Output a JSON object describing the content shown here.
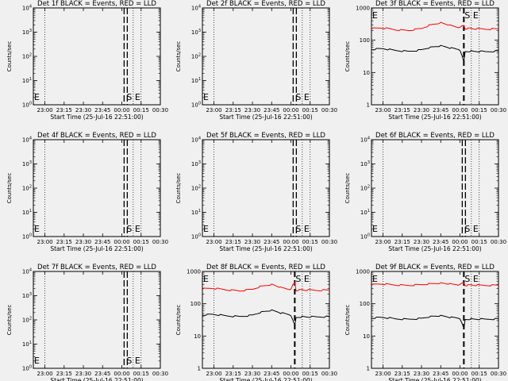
{
  "chart_data": [
    {
      "type": "line",
      "title": "Det 1f BLACK = Events, RED = LLD",
      "xlabel": "Start Time (25-Jul-16 22:51:00)",
      "ylabel": "Counts/sec",
      "log_y": true,
      "xlim": [
        "22:51",
        "00:30"
      ],
      "x_ticks": [
        "23:00",
        "23:15",
        "23:30",
        "23:45",
        "00:00",
        "00:15",
        "00:30"
      ],
      "ylim": [
        1,
        10000
      ],
      "y_tick_labels": [
        "10^0",
        "10^1",
        "10^2",
        "10^3",
        "10^4"
      ],
      "markers": {
        "E": "22:51",
        "S": "00:03",
        "E2": "00:07"
      },
      "series": []
    },
    {
      "type": "line",
      "title": "Det 2f BLACK = Events, RED = LLD",
      "xlabel": "Start Time (25-Jul-16 22:51:00)",
      "ylabel": "Counts/sec",
      "log_y": true,
      "xlim": [
        "22:51",
        "00:30"
      ],
      "x_ticks": [
        "23:00",
        "23:15",
        "23:30",
        "23:45",
        "00:00",
        "00:15",
        "00:30"
      ],
      "ylim": [
        1,
        10000
      ],
      "y_tick_labels": [
        "10^0",
        "10^1",
        "10^2",
        "10^3",
        "10^4"
      ],
      "markers": {
        "E": "22:51",
        "S": "00:03",
        "E2": "00:07"
      },
      "series": []
    },
    {
      "type": "line",
      "title": "Det 3f BLACK = Events, RED = LLD",
      "xlabel": "Start Time (25-Jul-16 22:51:00)",
      "ylabel": "Counts/sec",
      "log_y": true,
      "xlim": [
        "22:51",
        "00:30"
      ],
      "x_ticks": [
        "23:00",
        "23:15",
        "23:30",
        "23:45",
        "00:00",
        "00:15",
        "00:30"
      ],
      "ylim": [
        1,
        1000
      ],
      "y_tick_labels": [
        "1",
        "10",
        "100",
        "1000"
      ],
      "markers": {
        "E": "22:51",
        "S": "00:03",
        "E2": "00:07"
      },
      "series": [
        {
          "color": "#ff0000",
          "x": [
            "22:51",
            "23:00",
            "23:10",
            "23:20",
            "23:30",
            "23:37",
            "23:45",
            "23:52",
            "00:00",
            "00:03",
            "00:04",
            "00:10",
            "00:20",
            "00:30"
          ],
          "y": [
            230,
            240,
            210,
            200,
            230,
            300,
            350,
            290,
            240,
            300,
            230,
            230,
            220,
            225
          ]
        },
        {
          "color": "#000000",
          "x": [
            "22:51",
            "23:00",
            "23:10",
            "23:20",
            "23:30",
            "23:37",
            "23:45",
            "23:52",
            "00:00",
            "00:03",
            "00:04",
            "00:10",
            "00:20",
            "00:30"
          ],
          "y": [
            52,
            55,
            48,
            45,
            50,
            60,
            66,
            58,
            50,
            22,
            45,
            46,
            44,
            46
          ]
        }
      ]
    },
    {
      "type": "line",
      "title": "Det 4f BLACK = Events, RED = LLD",
      "xlabel": "Start Time (25-Jul-16 22:51:00)",
      "ylabel": "Counts/sec",
      "log_y": true,
      "xlim": [
        "22:51",
        "00:30"
      ],
      "x_ticks": [
        "23:00",
        "23:15",
        "23:30",
        "23:45",
        "00:00",
        "00:15",
        "00:30"
      ],
      "ylim": [
        1,
        10000
      ],
      "y_tick_labels": [
        "10^0",
        "10^1",
        "10^2",
        "10^3",
        "10^4"
      ],
      "markers": {
        "E": "22:51",
        "S": "00:03",
        "E2": "00:07"
      },
      "series": []
    },
    {
      "type": "line",
      "title": "Det 5f BLACK = Events, RED = LLD",
      "xlabel": "Start Time (25-Jul-16 22:51:00)",
      "ylabel": "Counts/sec",
      "log_y": true,
      "xlim": [
        "22:51",
        "00:30"
      ],
      "x_ticks": [
        "23:00",
        "23:15",
        "23:30",
        "23:45",
        "00:00",
        "00:15",
        "00:30"
      ],
      "ylim": [
        1,
        10000
      ],
      "y_tick_labels": [
        "10^0",
        "10^1",
        "10^2",
        "10^3",
        "10^4"
      ],
      "markers": {
        "E": "22:51",
        "S": "00:03",
        "E2": "00:07"
      },
      "series": []
    },
    {
      "type": "line",
      "title": "Det 6f BLACK = Events, RED = LLD",
      "xlabel": "Start Time (25-Jul-16 22:51:00)",
      "ylabel": "Counts/sec",
      "log_y": true,
      "xlim": [
        "22:51",
        "00:30"
      ],
      "x_ticks": [
        "23:00",
        "23:15",
        "23:30",
        "23:45",
        "00:00",
        "00:15",
        "00:30"
      ],
      "ylim": [
        1,
        10000
      ],
      "y_tick_labels": [
        "10^0",
        "10^1",
        "10^2",
        "10^3",
        "10^4"
      ],
      "markers": {
        "E": "22:51",
        "S": "00:03",
        "E2": "00:07"
      },
      "series": []
    },
    {
      "type": "line",
      "title": "Det 7f BLACK = Events, RED = LLD",
      "xlabel": "Start Time (25-Jul-16 22:51:00)",
      "ylabel": "Counts/sec",
      "log_y": true,
      "xlim": [
        "22:51",
        "00:30"
      ],
      "x_ticks": [
        "23:00",
        "23:15",
        "23:30",
        "23:45",
        "00:00",
        "00:15",
        "00:30"
      ],
      "ylim": [
        1,
        10000
      ],
      "y_tick_labels": [
        "10^0",
        "10^1",
        "10^2",
        "10^3",
        "10^4"
      ],
      "markers": {
        "E": "22:51",
        "S": "00:03",
        "E2": "00:07"
      },
      "series": []
    },
    {
      "type": "line",
      "title": "Det 8f BLACK = Events, RED = LLD",
      "xlabel": "Start Time (25-Jul-16 22:51:00)",
      "ylabel": "Counts/sec",
      "log_y": true,
      "xlim": [
        "22:51",
        "00:30"
      ],
      "x_ticks": [
        "23:00",
        "23:15",
        "23:30",
        "23:45",
        "00:00",
        "00:15",
        "00:30"
      ],
      "ylim": [
        1,
        1000
      ],
      "y_tick_labels": [
        "1",
        "10",
        "100",
        "1000"
      ],
      "markers": {
        "E": "22:51",
        "S": "00:03",
        "E2": "00:07"
      },
      "series": [
        {
          "color": "#ff0000",
          "x": [
            "22:51",
            "23:00",
            "23:10",
            "23:20",
            "23:30",
            "23:37",
            "23:45",
            "23:52",
            "00:00",
            "00:03",
            "00:04",
            "00:10",
            "00:20",
            "00:30"
          ],
          "y": [
            290,
            300,
            270,
            250,
            280,
            350,
            400,
            320,
            270,
            480,
            260,
            270,
            260,
            265
          ]
        },
        {
          "color": "#000000",
          "x": [
            "22:51",
            "23:00",
            "23:10",
            "23:20",
            "23:30",
            "23:37",
            "23:45",
            "23:52",
            "00:00",
            "00:03",
            "00:04",
            "00:10",
            "00:20",
            "00:30"
          ],
          "y": [
            45,
            47,
            42,
            40,
            44,
            55,
            62,
            52,
            44,
            22,
            38,
            40,
            39,
            40
          ]
        }
      ]
    },
    {
      "type": "line",
      "title": "Det 9f BLACK = Events, RED = LLD",
      "xlabel": "Start Time (25-Jul-16 22:51:00)",
      "ylabel": "Counts/sec",
      "log_y": true,
      "xlim": [
        "22:51",
        "00:30"
      ],
      "x_ticks": [
        "23:00",
        "23:15",
        "23:30",
        "23:45",
        "00:00",
        "00:15",
        "00:30"
      ],
      "ylim": [
        1,
        1000
      ],
      "y_tick_labels": [
        "1",
        "10",
        "100",
        "1000"
      ],
      "markers": {
        "E": "22:51",
        "S": "00:03",
        "E2": "00:07"
      },
      "series": [
        {
          "color": "#ff0000",
          "x": [
            "22:51",
            "23:00",
            "23:10",
            "23:20",
            "23:30",
            "23:37",
            "23:45",
            "23:52",
            "00:00",
            "00:03",
            "00:04",
            "00:10",
            "00:20",
            "00:30"
          ],
          "y": [
            390,
            410,
            380,
            370,
            390,
            420,
            440,
            410,
            380,
            470,
            370,
            380,
            370,
            375
          ]
        },
        {
          "color": "#000000",
          "x": [
            "22:51",
            "23:00",
            "23:10",
            "23:20",
            "23:30",
            "23:37",
            "23:45",
            "23:52",
            "00:00",
            "00:03",
            "00:04",
            "00:10",
            "00:20",
            "00:30"
          ],
          "y": [
            36,
            38,
            34,
            33,
            35,
            40,
            42,
            38,
            35,
            18,
            33,
            34,
            33,
            34
          ]
        }
      ]
    }
  ]
}
